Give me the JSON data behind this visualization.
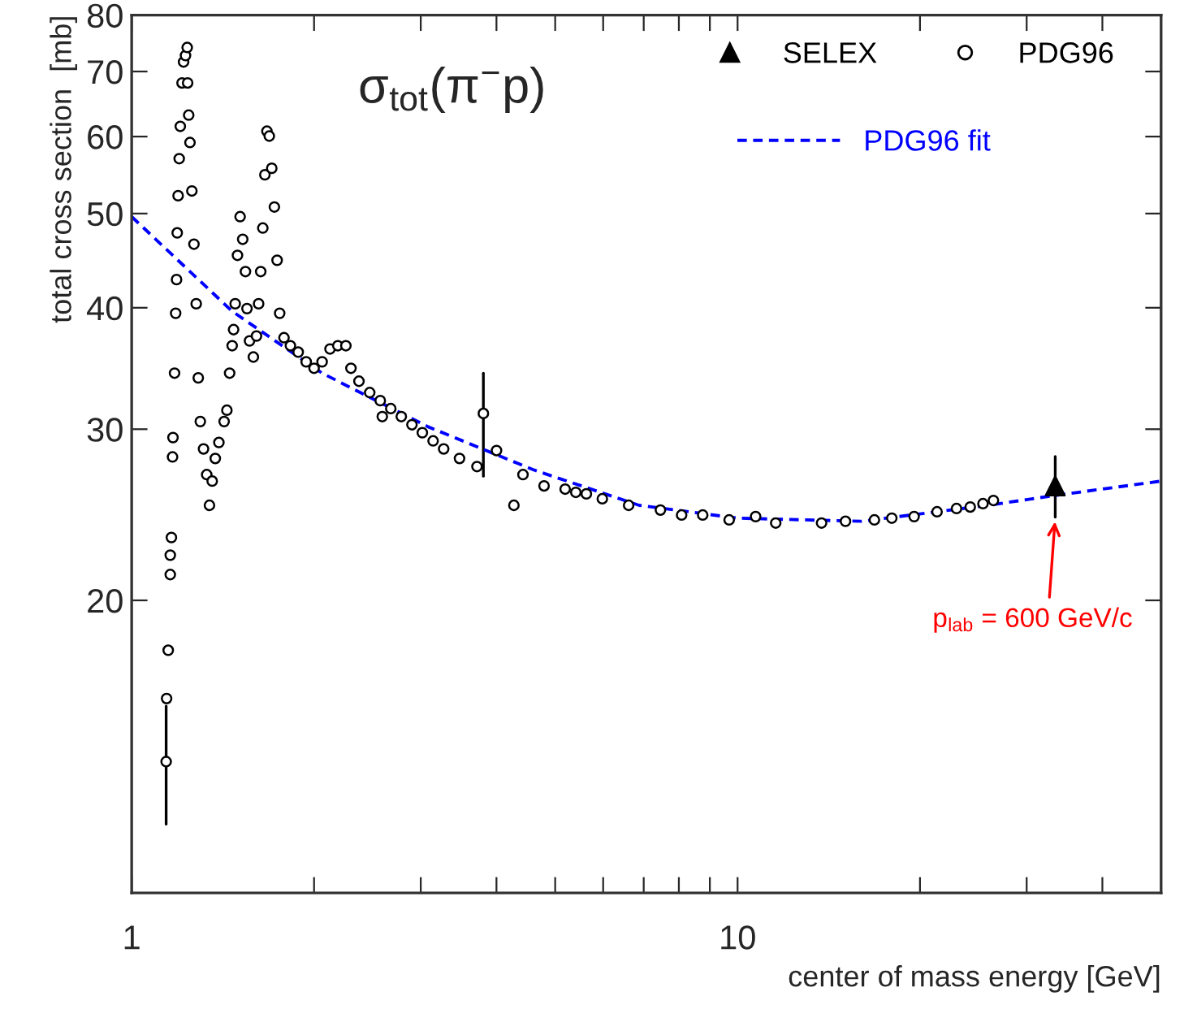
{
  "chart_data": {
    "type": "scatter",
    "title": "σ$_{tot}$(π$^{−}$p)",
    "xlabel": "center of mass energy [GeV]",
    "ylabel": "total cross section  [mb]",
    "log": "xy",
    "xlim": [
      1,
      50
    ],
    "ylim": [
      10,
      80
    ],
    "xticks": [
      1,
      {
        "value": 2,
        "label": null
      },
      {
        "value": 3,
        "label": null
      },
      {
        "value": 4,
        "label": null
      },
      {
        "value": 5,
        "label": null
      },
      {
        "value": 6,
        "label": null
      },
      {
        "value": 7,
        "label": null
      },
      {
        "value": 8,
        "label": null
      },
      {
        "value": 9,
        "label": null
      },
      10,
      {
        "value": 20,
        "label": null
      },
      {
        "value": 30,
        "label": null
      },
      {
        "value": 40,
        "label": null
      }
    ],
    "yticks": [
      20,
      30,
      40,
      50,
      60,
      70,
      80
    ],
    "grid": false,
    "legend": "top right",
    "series": [
      {
        "name": "SELEX",
        "type": "scatter",
        "marker": "triangle",
        "color": "#000000",
        "x": [
          33.44
        ],
        "values": [
          26.23
        ],
        "errors": [
          [
            24.36,
            28.12
          ]
        ]
      },
      {
        "name": "PDG96",
        "type": "scatter",
        "marker": "circle",
        "color": "#000000",
        "x": [
          1.14,
          1.142,
          1.149,
          1.158,
          1.158,
          1.163,
          1.168,
          1.17,
          1.177,
          1.182,
          1.186,
          1.189,
          1.193,
          1.198,
          1.203,
          1.211,
          1.218,
          1.227,
          1.235,
          1.237,
          1.242,
          1.248,
          1.257,
          1.267,
          1.278,
          1.288,
          1.298,
          1.314,
          1.33,
          1.344,
          1.358,
          1.374,
          1.393,
          1.421,
          1.436,
          1.451,
          1.465,
          1.473,
          1.482,
          1.495,
          1.51,
          1.525,
          1.541,
          1.55,
          1.565,
          1.588,
          1.607,
          1.62,
          1.633,
          1.646,
          1.659,
          1.672,
          1.687,
          1.703,
          1.72,
          1.738,
          1.755,
          1.784,
          1.828,
          1.883,
          1.941,
          2.0,
          2.062,
          2.125,
          2.189,
          2.257,
          2.301,
          2.372,
          2.471,
          2.572,
          2.592,
          2.677,
          2.786,
          2.901,
          3.018,
          3.144,
          3.273,
          3.476,
          3.715,
          3.806,
          4.001,
          4.274,
          4.424,
          4.793,
          5.193,
          5.629,
          5.408,
          5.981,
          6.61,
          7.459,
          8.084,
          8.759,
          9.685,
          10.71,
          11.56,
          13.76,
          15.07,
          16.82,
          17.97,
          19.56,
          21.34,
          22.98,
          24.21,
          25.41,
          26.44
        ],
        "values": [
          13.65,
          15.85,
          17.77,
          21.26,
          22.26,
          23.21,
          28.09,
          29.41,
          34.26,
          39.48,
          42.76,
          47.76,
          52.16,
          56.94,
          61.47,
          68.13,
          71.6,
          72.7,
          74.1,
          68.13,
          63.13,
          59.16,
          52.75,
          46.5,
          40.38,
          33.88,
          30.55,
          28.63,
          26.94,
          25.05,
          26.53,
          27.99,
          29.07,
          30.55,
          31.38,
          34.26,
          36.56,
          37.98,
          40.38,
          45.29,
          49.63,
          47.04,
          43.58,
          39.92,
          36.98,
          35.59,
          37.41,
          40.38,
          43.58,
          48.31,
          54.81,
          60.77,
          60.07,
          55.66,
          50.78,
          44.76,
          39.48,
          37.26,
          36.56,
          36.01,
          35.19,
          34.66,
          35.19,
          36.28,
          36.56,
          36.56,
          34.66,
          33.61,
          32.72,
          32.1,
          30.91,
          31.5,
          30.91,
          30.32,
          29.75,
          29.18,
          28.63,
          27.99,
          27.46,
          31.14,
          28.52,
          25.05,
          26.94,
          26.23,
          26.03,
          25.74,
          25.83,
          25.44,
          25.05,
          24.77,
          24.48,
          24.48,
          24.2,
          24.39,
          24.02,
          24.02,
          24.12,
          24.2,
          24.3,
          24.39,
          24.67,
          24.86,
          24.95,
          25.15,
          25.34
        ],
        "errors": [
          [
            11.77,
            15.57
          ],
          null,
          null,
          null,
          null,
          null,
          null,
          null,
          null,
          null,
          null,
          null,
          null,
          null,
          null,
          null,
          null,
          null,
          null,
          null,
          null,
          null,
          null,
          null,
          null,
          null,
          null,
          null,
          null,
          null,
          null,
          null,
          null,
          null,
          null,
          null,
          null,
          null,
          null,
          null,
          null,
          null,
          null,
          null,
          null,
          null,
          null,
          null,
          null,
          null,
          null,
          null,
          null,
          null,
          null,
          null,
          null,
          null,
          null,
          null,
          null,
          null,
          null,
          null,
          null,
          null,
          null,
          null,
          null,
          null,
          null,
          null,
          null,
          null,
          null,
          null,
          null,
          null,
          null,
          [
            26.84,
            34.26
          ],
          null,
          null,
          null,
          null,
          null,
          null,
          null,
          null,
          null,
          null,
          null,
          null,
          null,
          null,
          null,
          null,
          null,
          null,
          null,
          null,
          null,
          null,
          null,
          null,
          null
        ]
      },
      {
        "name": "PDG96 fit",
        "type": "line",
        "line_style": "dashed",
        "color": "#0000ff",
        "x": [
          1,
          1.465,
          2.062,
          3.085,
          4.604,
          6.88,
          10,
          16.0,
          25.9,
          33.4,
          50
        ],
        "values": [
          49.63,
          39.67,
          34.26,
          30.17,
          27.25,
          25.05,
          24.3,
          24.12,
          25.05,
          25.64,
          26.53
        ]
      }
    ],
    "annotations": [
      {
        "text": "p$_{lab}$ = 600 GeV/c",
        "x": 33.44,
        "y": 24.36
      }
    ]
  }
}
